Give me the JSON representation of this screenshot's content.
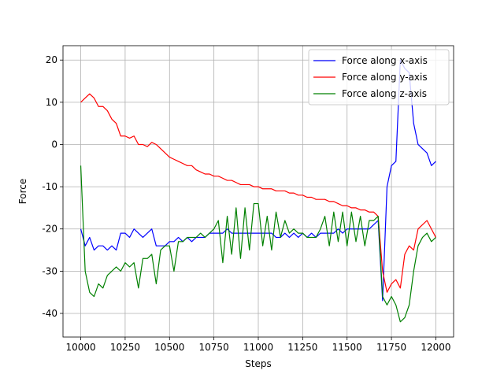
{
  "chart_data": {
    "type": "line",
    "xlabel": "Steps",
    "ylabel": "Force",
    "x": [
      10000,
      10025,
      10050,
      10075,
      10100,
      10125,
      10150,
      10175,
      10200,
      10225,
      10250,
      10275,
      10300,
      10325,
      10350,
      10375,
      10400,
      10425,
      10450,
      10475,
      10500,
      10525,
      10550,
      10575,
      10600,
      10625,
      10650,
      10675,
      10700,
      10725,
      10750,
      10775,
      10800,
      10825,
      10850,
      10875,
      10900,
      10925,
      10950,
      10975,
      11000,
      11025,
      11050,
      11075,
      11100,
      11125,
      11150,
      11175,
      11200,
      11225,
      11250,
      11275,
      11300,
      11325,
      11350,
      11375,
      11400,
      11425,
      11450,
      11475,
      11500,
      11525,
      11550,
      11575,
      11600,
      11625,
      11650,
      11675,
      11700,
      11725,
      11750,
      11775,
      11800,
      11825,
      11850,
      11875,
      11900,
      11925,
      11950,
      11975,
      12000
    ],
    "series": [
      {
        "name": "Force along x-axis",
        "color": "#0000ff",
        "values": [
          -20,
          -24,
          -22,
          -25,
          -24,
          -24,
          -25,
          -24,
          -25,
          -21,
          -21,
          -22,
          -20,
          -21,
          -22,
          -21,
          -20,
          -24,
          -24,
          -24,
          -23,
          -23,
          -22,
          -23,
          -22,
          -23,
          -22,
          -22,
          -22,
          -21,
          -21,
          -21,
          -21,
          -20,
          -21,
          -21,
          -21,
          -21,
          -21,
          -21,
          -21,
          -21,
          -21,
          -21,
          -22,
          -22,
          -21,
          -22,
          -21,
          -22,
          -21,
          -22,
          -21,
          -22,
          -21,
          -21,
          -21,
          -21,
          -20,
          -21,
          -20,
          -20,
          -20,
          -20,
          -20,
          -20,
          -19,
          -18,
          -37,
          -10,
          -5,
          -4,
          20,
          18,
          17,
          5,
          0,
          -1,
          -2,
          -5,
          -4
        ]
      },
      {
        "name": "Force along y-axis",
        "color": "#ff0000",
        "values": [
          10,
          11,
          12,
          11,
          9,
          9,
          8,
          6,
          5,
          2,
          2,
          1.5,
          2,
          0,
          0,
          -0.5,
          0.5,
          0,
          -1,
          -2,
          -3,
          -3.5,
          -4,
          -4.5,
          -5,
          -5,
          -6,
          -6.5,
          -7,
          -7,
          -7.5,
          -7.5,
          -8,
          -8.5,
          -8.5,
          -9,
          -9.5,
          -9.5,
          -9.5,
          -10,
          -10,
          -10.5,
          -10.5,
          -10.5,
          -11,
          -11,
          -11,
          -11.5,
          -11.5,
          -12,
          -12,
          -12.5,
          -12.5,
          -13,
          -13,
          -13,
          -13.5,
          -13.5,
          -14,
          -14.5,
          -14.5,
          -15,
          -15,
          -15.5,
          -15.5,
          -16,
          -16,
          -17,
          -30,
          -35,
          -33,
          -32,
          -34,
          -26,
          -24,
          -25,
          -20,
          -19,
          -18,
          -20,
          -22
        ]
      },
      {
        "name": "Force along z-axis",
        "color": "#008000",
        "values": [
          -5,
          -30,
          -35,
          -36,
          -33,
          -34,
          -31,
          -30,
          -29,
          -30,
          -28,
          -29,
          -28,
          -34,
          -27,
          -27,
          -26,
          -33,
          -25,
          -24,
          -24,
          -30,
          -23,
          -23,
          -22,
          -22,
          -22,
          -21,
          -22,
          -21,
          -20,
          -18,
          -28,
          -17,
          -26,
          -15,
          -27,
          -15,
          -25,
          -14,
          -14,
          -24,
          -17,
          -25,
          -16,
          -22,
          -18,
          -21,
          -20,
          -21,
          -21,
          -22,
          -22,
          -22,
          -20,
          -17,
          -24,
          -16,
          -23,
          -16,
          -24,
          -16,
          -23,
          -17,
          -24,
          -18,
          -18,
          -17,
          -36,
          -38,
          -36,
          -38,
          -42,
          -41,
          -38,
          -30,
          -24,
          -22,
          -21,
          -23,
          -22
        ]
      }
    ],
    "xlim": [
      9900,
      12100
    ],
    "ylim": [
      -45.6,
      23.4
    ],
    "xticks": [
      10000,
      10250,
      10500,
      10750,
      11000,
      11250,
      11500,
      11750,
      12000
    ],
    "yticks": [
      -40,
      -30,
      -20,
      -10,
      0,
      10,
      20
    ],
    "grid": true,
    "legend": "upper right"
  }
}
